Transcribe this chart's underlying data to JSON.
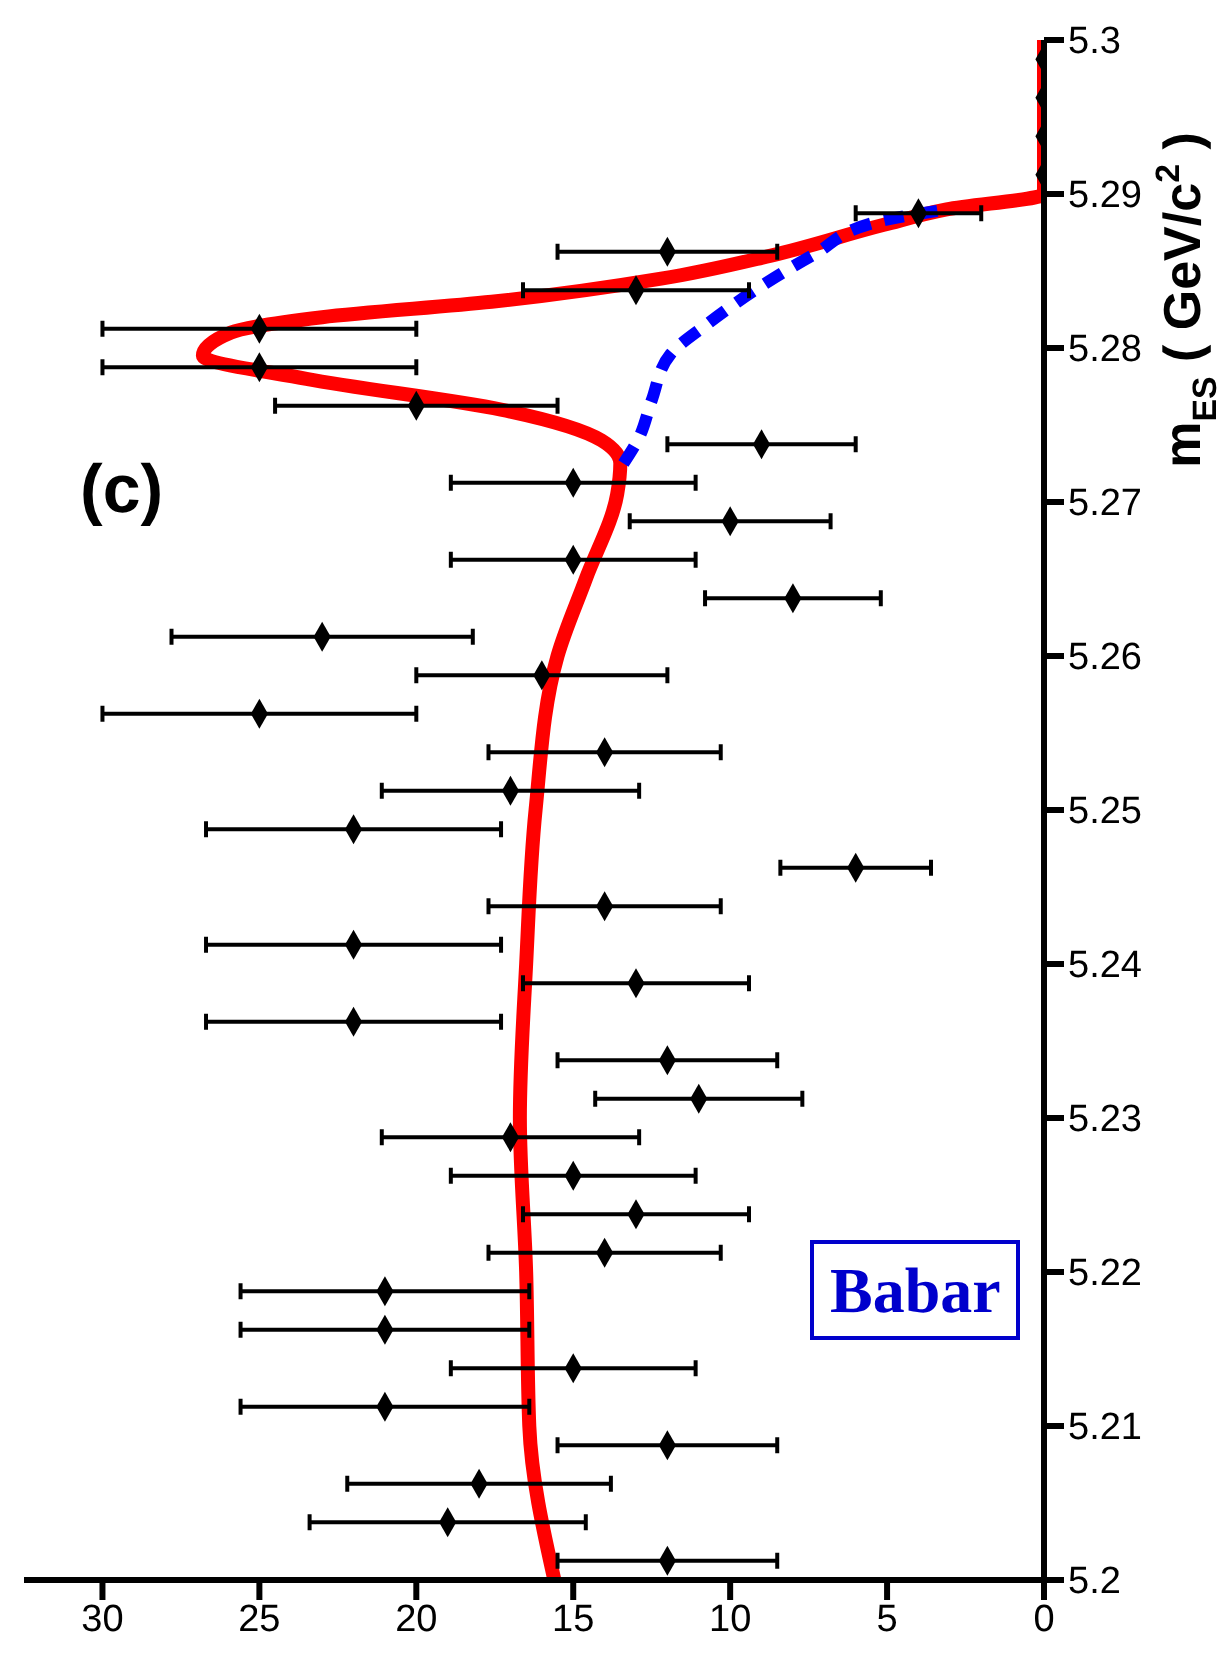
{
  "chart_data": {
    "type": "scatter",
    "ylabel": "m$_{ES}$ ( GeV/c$^{2}$ )",
    "annotations": [
      "(c)",
      "Babar"
    ],
    "ylim": [
      5.2,
      5.3
    ],
    "yticks": [
      5.2,
      5.21,
      5.22,
      5.23,
      5.24,
      5.25,
      5.26,
      5.27,
      5.28,
      5.29,
      5.3
    ],
    "xlim": [
      32.5,
      0
    ],
    "xticks": [
      30,
      25,
      20,
      15,
      10,
      5,
      0
    ],
    "grid": false,
    "series": [
      {
        "color": "#000000",
        "marker": "diamond",
        "values": [
          5.20125,
          5.20375,
          5.20625,
          5.20875,
          5.21125,
          5.21375,
          5.21625,
          5.21875,
          5.22125,
          5.22375,
          5.22625,
          5.22875,
          5.23125,
          5.23375,
          5.23625,
          5.23875,
          5.24125,
          5.24375,
          5.24625,
          5.24875,
          5.25125,
          5.25375,
          5.25625,
          5.25875,
          5.26125,
          5.26375,
          5.26625,
          5.26875,
          5.27125,
          5.27375,
          5.27625,
          5.27875,
          5.28125,
          5.28375,
          5.28625,
          5.28875,
          5.29125,
          5.29375,
          5.29625,
          5.29875
        ],
        "x": [
          12,
          19,
          18,
          12,
          21,
          15,
          21,
          21,
          14,
          13,
          15,
          17,
          11,
          12,
          22,
          13,
          22,
          14,
          6,
          22,
          17,
          14,
          25,
          16,
          23,
          8,
          15,
          10,
          15,
          9,
          20,
          25,
          25,
          13,
          12,
          4,
          0,
          0,
          0,
          0
        ],
        "xerrors": [
          3.5,
          4.4,
          4.2,
          3.5,
          4.6,
          3.9,
          4.6,
          4.6,
          3.7,
          3.6,
          3.9,
          4.1,
          3.3,
          3.5,
          4.7,
          3.6,
          4.7,
          3.7,
          2.4,
          4.7,
          4.1,
          3.7,
          5,
          4,
          4.8,
          2.8,
          3.9,
          3.2,
          3.9,
          3,
          4.5,
          5,
          5,
          3.6,
          3.5,
          2,
          null,
          null,
          null,
          null
        ]
      },
      {
        "type": "line",
        "color": "#ff0000",
        "marker": "none",
        "line_style": "solid",
        "values": [
          5.2,
          5.21,
          5.22,
          5.23,
          5.24,
          5.25,
          5.26,
          5.265,
          5.2705,
          5.2725,
          5.274,
          5.276,
          5.278,
          5.2795,
          5.281,
          5.282,
          5.283,
          5.2845,
          5.286,
          5.288,
          5.289,
          5.29,
          5.3
        ],
        "x": [
          15.6,
          16.4,
          16.5,
          16.7,
          16.5,
          16.2,
          15.5,
          14.6,
          13.6,
          13.5,
          14.1,
          17.3,
          23.5,
          26.8,
          25.9,
          23,
          17.6,
          12.2,
          8.7,
          5.1,
          3.1,
          0,
          0
        ]
      },
      {
        "type": "line",
        "color": "#0000ff",
        "marker": "none",
        "line_style": "dashed",
        "values": [
          5.2725,
          5.2742,
          5.2766,
          5.2796,
          5.2816,
          5.2839,
          5.2861,
          5.2882,
          5.289
        ],
        "x": [
          13.4,
          12.9,
          12.5,
          11.9,
          10.7,
          9.1,
          7.3,
          5.3,
          3.1
        ]
      }
    ]
  }
}
